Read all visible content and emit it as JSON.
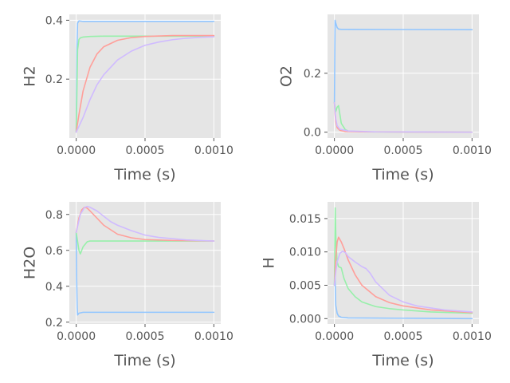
{
  "chart_data": [
    {
      "type": "line",
      "xlabel": "Time (s)",
      "ylabel": "H2",
      "xlim": [
        -5e-05,
        0.00105
      ],
      "ylim": [
        0.0,
        0.42
      ],
      "xticks": [
        0.0,
        0.0005,
        0.001
      ],
      "xtick_labels": [
        "0.0000",
        "0.0005",
        "0.0010"
      ],
      "yticks": [
        0.2,
        0.4
      ],
      "ytick_labels": [
        "0.2",
        "0.4"
      ],
      "grid": true,
      "series": [
        {
          "color": "#92c6ff",
          "x": [
            0,
            5e-06,
            1e-05,
            2e-05,
            5e-05,
            0.0001,
            0.0003,
            0.0005,
            0.001
          ],
          "y": [
            0.02,
            0.3,
            0.39,
            0.398,
            0.396,
            0.396,
            0.396,
            0.396,
            0.396
          ]
        },
        {
          "color": "#97f0aa",
          "x": [
            0,
            5e-06,
            1e-05,
            2e-05,
            3e-05,
            5e-05,
            0.0001,
            0.0002,
            0.0005,
            0.001
          ],
          "y": [
            0.02,
            0.15,
            0.3,
            0.335,
            0.34,
            0.343,
            0.345,
            0.346,
            0.346,
            0.346
          ]
        },
        {
          "color": "#ff9f9a",
          "x": [
            0,
            2e-05,
            5e-05,
            0.0001,
            0.00015,
            0.0002,
            0.0003,
            0.0004,
            0.0005,
            0.0007,
            0.001
          ],
          "y": [
            0.02,
            0.08,
            0.16,
            0.24,
            0.285,
            0.31,
            0.332,
            0.341,
            0.345,
            0.348,
            0.348
          ]
        },
        {
          "color": "#d0bbff",
          "x": [
            0,
            5e-05,
            0.0001,
            0.00015,
            0.0002,
            0.0003,
            0.0004,
            0.0005,
            0.0006,
            0.0007,
            0.0008,
            0.0009,
            0.001
          ],
          "y": [
            0.02,
            0.07,
            0.13,
            0.18,
            0.215,
            0.265,
            0.295,
            0.315,
            0.326,
            0.334,
            0.339,
            0.342,
            0.344
          ]
        }
      ]
    },
    {
      "type": "line",
      "xlabel": "Time (s)",
      "ylabel": "O2",
      "xlim": [
        -5e-05,
        0.00105
      ],
      "ylim": [
        -0.02,
        0.4
      ],
      "xticks": [
        0.0,
        0.0005,
        0.001
      ],
      "xtick_labels": [
        "0.0000",
        "0.0005",
        "0.0010"
      ],
      "yticks": [
        0.0,
        0.2
      ],
      "ytick_labels": [
        "0.0",
        "0.2"
      ],
      "grid": true,
      "series": [
        {
          "color": "#92c6ff",
          "x": [
            0,
            5e-06,
            1e-05,
            2e-05,
            3e-05,
            5e-05,
            0.0001,
            0.001
          ],
          "y": [
            0.1,
            0.38,
            0.37,
            0.355,
            0.35,
            0.349,
            0.349,
            0.348
          ]
        },
        {
          "color": "#97f0aa",
          "x": [
            0,
            1e-05,
            2e-05,
            3e-05,
            5e-05,
            8e-05,
            0.0001,
            0.0002,
            0.001
          ],
          "y": [
            0.1,
            0.07,
            0.085,
            0.09,
            0.03,
            0.008,
            0.004,
            0.001,
            0.0
          ]
        },
        {
          "color": "#ff9f9a",
          "x": [
            0,
            5e-06,
            1e-05,
            2e-05,
            4e-05,
            8e-05,
            0.0002,
            0.001
          ],
          "y": [
            0.1,
            0.06,
            0.035,
            0.015,
            0.006,
            0.002,
            0.001,
            0.0
          ]
        },
        {
          "color": "#d0bbff",
          "x": [
            0,
            5e-06,
            1e-05,
            2e-05,
            4e-05,
            0.0001,
            0.0003,
            0.001
          ],
          "y": [
            0.1,
            0.07,
            0.045,
            0.022,
            0.01,
            0.004,
            0.001,
            0.0
          ]
        }
      ]
    },
    {
      "type": "line",
      "xlabel": "Time (s)",
      "ylabel": "H2O",
      "xlim": [
        -5e-05,
        0.00105
      ],
      "ylim": [
        0.19,
        0.87
      ],
      "xticks": [
        0.0,
        0.0005,
        0.001
      ],
      "xtick_labels": [
        "0.0000",
        "0.0005",
        "0.0010"
      ],
      "yticks": [
        0.2,
        0.4,
        0.6,
        0.8
      ],
      "ytick_labels": [
        "0.2",
        "0.4",
        "0.6",
        "0.8"
      ],
      "grid": true,
      "series": [
        {
          "color": "#92c6ff",
          "x": [
            0,
            3e-06,
            7e-06,
            1e-05,
            2e-05,
            5e-05,
            0.001
          ],
          "y": [
            0.7,
            0.45,
            0.28,
            0.24,
            0.25,
            0.255,
            0.255
          ]
        },
        {
          "color": "#97f0aa",
          "x": [
            0,
            1e-05,
            2e-05,
            3e-05,
            5e-05,
            8e-05,
            0.0001,
            0.0002,
            0.001
          ],
          "y": [
            0.7,
            0.65,
            0.6,
            0.58,
            0.62,
            0.648,
            0.652,
            0.652,
            0.652
          ]
        },
        {
          "color": "#ff9f9a",
          "x": [
            0,
            2e-05,
            4e-05,
            6e-05,
            8e-05,
            0.0001,
            0.00015,
            0.0002,
            0.0003,
            0.0004,
            0.0005,
            0.0007,
            0.001
          ],
          "y": [
            0.7,
            0.78,
            0.825,
            0.84,
            0.835,
            0.82,
            0.78,
            0.74,
            0.69,
            0.67,
            0.66,
            0.655,
            0.652
          ]
        },
        {
          "color": "#d0bbff",
          "x": [
            0,
            3e-05,
            6e-05,
            8e-05,
            0.0001,
            0.00015,
            0.0002,
            0.00025,
            0.0003,
            0.0004,
            0.0005,
            0.0006,
            0.0008,
            0.001
          ],
          "y": [
            0.7,
            0.8,
            0.838,
            0.845,
            0.84,
            0.82,
            0.79,
            0.76,
            0.74,
            0.71,
            0.685,
            0.672,
            0.658,
            0.652
          ]
        }
      ]
    },
    {
      "type": "line",
      "xlabel": "Time (s)",
      "ylabel": "H",
      "xlim": [
        -5e-05,
        0.00105
      ],
      "ylim": [
        -0.0008,
        0.0175
      ],
      "xticks": [
        0.0,
        0.0005,
        0.001
      ],
      "xtick_labels": [
        "0.0000",
        "0.0005",
        "0.0010"
      ],
      "yticks": [
        0.0,
        0.005,
        0.01,
        0.015
      ],
      "ytick_labels": [
        "0.000",
        "0.005",
        "0.010",
        "0.015"
      ],
      "grid": true,
      "series": [
        {
          "color": "#92c6ff",
          "x": [
            0,
            3e-06,
            7e-06,
            1e-05,
            2e-05,
            3e-05,
            5e-05,
            0.0001,
            0.001
          ],
          "y": [
            0.005,
            0.008,
            0.0045,
            0.002,
            0.0008,
            0.0004,
            0.0002,
            0.0001,
            0.0
          ]
        },
        {
          "color": "#97f0aa",
          "x": [
            0,
            6e-06,
            1.2e-05,
            2e-05,
            3e-05,
            5e-05,
            7e-05,
            0.0001,
            0.00015,
            0.0002,
            0.0003,
            0.0004,
            0.0005,
            0.0007,
            0.001
          ],
          "y": [
            0.005,
            0.0166,
            0.011,
            0.0085,
            0.0078,
            0.0076,
            0.006,
            0.0045,
            0.0033,
            0.0025,
            0.0018,
            0.0015,
            0.0013,
            0.001,
            0.0008
          ]
        },
        {
          "color": "#ff9f9a",
          "x": [
            0,
            1e-05,
            2e-05,
            3e-05,
            5e-05,
            7e-05,
            0.0001,
            0.00015,
            0.0002,
            0.0003,
            0.0004,
            0.0005,
            0.0007,
            0.001
          ],
          "y": [
            0.005,
            0.009,
            0.0115,
            0.0122,
            0.0115,
            0.0105,
            0.0088,
            0.0066,
            0.005,
            0.0033,
            0.0024,
            0.0019,
            0.0013,
            0.0009
          ]
        },
        {
          "color": "#d0bbff",
          "x": [
            0,
            1e-05,
            2e-05,
            4e-05,
            6e-05,
            8e-05,
            0.0001,
            0.00015,
            0.0002,
            0.00023,
            0.00026,
            0.0003,
            0.0004,
            0.0005,
            0.0006,
            0.0008,
            0.001
          ],
          "y": [
            0.005,
            0.007,
            0.0085,
            0.0098,
            0.0101,
            0.0099,
            0.0093,
            0.0085,
            0.0078,
            0.0075,
            0.0068,
            0.0055,
            0.0035,
            0.0025,
            0.0019,
            0.0013,
            0.001
          ]
        }
      ]
    }
  ]
}
